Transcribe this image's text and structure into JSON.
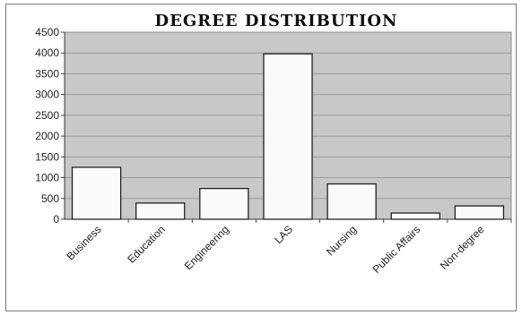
{
  "chart_data": {
    "type": "bar",
    "title": "DEGREE DISTRIBUTION",
    "xlabel": "",
    "ylabel": "",
    "categories": [
      "Business",
      "Education",
      "Engineering",
      "LAS",
      "Nursing",
      "Public Affairs",
      "Non-degree"
    ],
    "values": [
      1250,
      390,
      740,
      3980,
      850,
      150,
      320
    ],
    "ylim": [
      0,
      4500
    ],
    "yticks": [
      0,
      500,
      1000,
      1500,
      2000,
      2500,
      3000,
      3500,
      4000,
      4500
    ],
    "grid": true,
    "legend": "none",
    "colors": {
      "plot_background": "#c8c8c8",
      "bar_fill": "#fafafa",
      "bar_stroke": "#222222",
      "gridline": "#9a9a9a"
    }
  }
}
